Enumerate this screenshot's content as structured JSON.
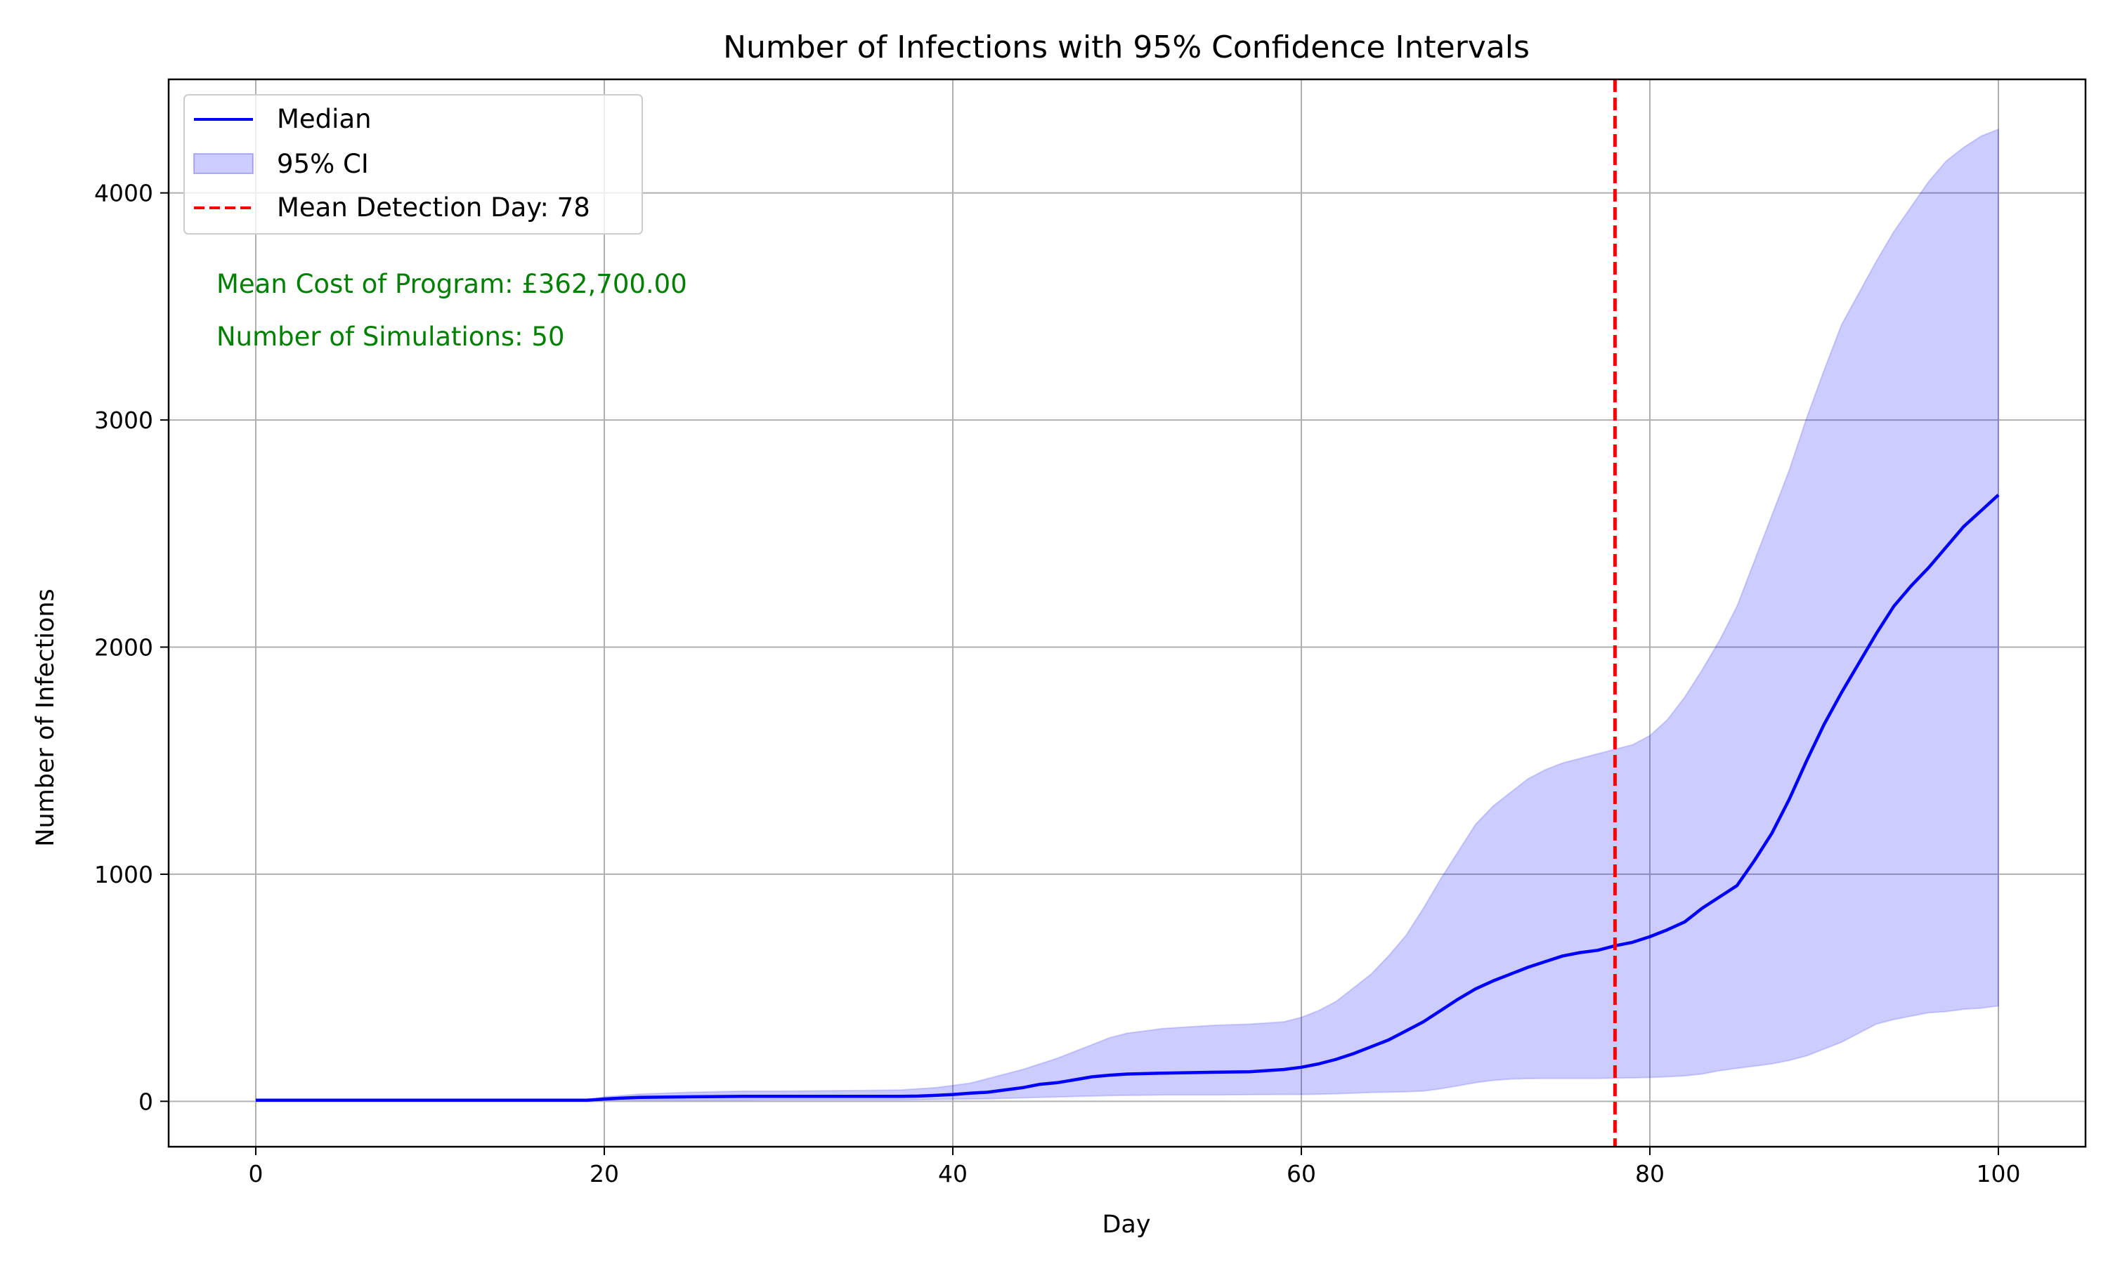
{
  "chart_data": {
    "type": "line",
    "title": "Number of Infections with 95% Confidence Intervals",
    "xlabel": "Day",
    "ylabel": "Number of Infections",
    "xlim": [
      -5,
      105
    ],
    "ylim": [
      -200,
      4500
    ],
    "xticks": [
      0,
      20,
      40,
      60,
      80,
      100
    ],
    "yticks": [
      0,
      1000,
      2000,
      3000,
      4000
    ],
    "grid": true,
    "legend_position": "top-left",
    "x": [
      0,
      5,
      10,
      15,
      19,
      20,
      21,
      22,
      25,
      28,
      30,
      35,
      37,
      38,
      39,
      40,
      41,
      42,
      43,
      44,
      45,
      46,
      47,
      48,
      49,
      50,
      51,
      52,
      55,
      57,
      59,
      60,
      61,
      62,
      63,
      64,
      65,
      66,
      67,
      68,
      69,
      70,
      71,
      72,
      73,
      74,
      75,
      76,
      77,
      78,
      79,
      80,
      81,
      82,
      83,
      84,
      85,
      86,
      87,
      88,
      89,
      90,
      91,
      92,
      93,
      94,
      95,
      96,
      97,
      98,
      99,
      100
    ],
    "series": [
      {
        "name": "Median",
        "kind": "line",
        "color": "#0000ff",
        "values": [
          5,
          5,
          5,
          5,
          5,
          10,
          14,
          17,
          20,
          22,
          22,
          22,
          22,
          23,
          26,
          30,
          36,
          40,
          50,
          60,
          75,
          82,
          95,
          108,
          115,
          120,
          122,
          124,
          128,
          130,
          140,
          150,
          165,
          185,
          210,
          240,
          270,
          310,
          350,
          400,
          450,
          495,
          530,
          560,
          590,
          615,
          640,
          655,
          665,
          685,
          700,
          725,
          755,
          790,
          850,
          900,
          950,
          1060,
          1180,
          1330,
          1500,
          1660,
          1800,
          1930,
          2060,
          2180,
          2270,
          2350,
          2440,
          2530,
          2600,
          2670
        ]
      },
      {
        "name": "95% CI",
        "kind": "band",
        "color": "#0000ff",
        "opacity": 0.2,
        "lower": [
          5,
          5,
          5,
          5,
          5,
          5,
          5,
          5,
          5,
          5,
          6,
          6,
          6,
          7,
          8,
          9,
          10,
          11,
          13,
          15,
          17,
          19,
          21,
          23,
          25,
          26,
          27,
          28,
          28,
          29,
          30,
          30,
          31,
          33,
          36,
          39,
          40,
          42,
          45,
          55,
          68,
          82,
          92,
          98,
          100,
          101,
          101,
          101,
          101,
          102,
          103,
          105,
          108,
          112,
          120,
          135,
          145,
          155,
          165,
          180,
          200,
          230,
          260,
          300,
          340,
          360,
          375,
          390,
          395,
          405,
          410,
          420
        ],
        "upper": [
          5,
          5,
          5,
          5,
          5,
          20,
          25,
          32,
          40,
          45,
          45,
          48,
          50,
          55,
          60,
          70,
          80,
          100,
          120,
          140,
          165,
          190,
          220,
          250,
          280,
          300,
          310,
          320,
          335,
          340,
          350,
          370,
          400,
          440,
          500,
          560,
          640,
          730,
          850,
          980,
          1100,
          1220,
          1300,
          1360,
          1420,
          1460,
          1490,
          1510,
          1530,
          1550,
          1570,
          1610,
          1680,
          1780,
          1900,
          2030,
          2180,
          2380,
          2580,
          2780,
          3010,
          3220,
          3420,
          3560,
          3700,
          3830,
          3940,
          4050,
          4140,
          4200,
          4250,
          4280
        ]
      },
      {
        "name": "Mean Detection Day: 78",
        "kind": "vline",
        "color": "#ff0000",
        "x": 78
      }
    ],
    "annotations": [
      {
        "text": "Mean Cost of Program: £362,700.00",
        "color": "#008000"
      },
      {
        "text": "Number of Simulations: 50",
        "color": "#008000"
      }
    ]
  }
}
